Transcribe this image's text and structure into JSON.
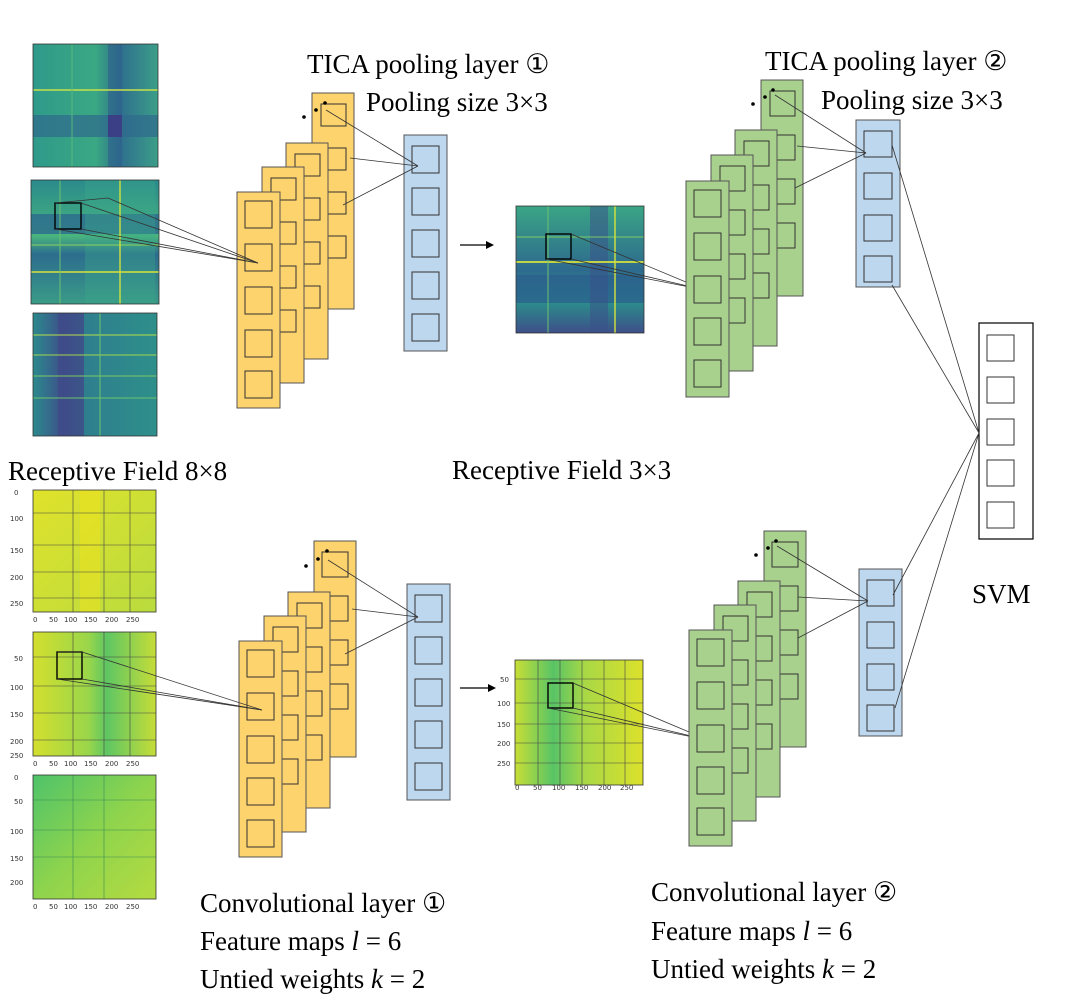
{
  "labels": {
    "tica1_title": "TICA pooling layer ①",
    "tica1_pool": "Pooling size 3×3",
    "tica2_title": "TICA pooling layer ②",
    "tica2_pool": "Pooling size 3×3",
    "rf1": "Receptive Field 8×8",
    "rf2": "Receptive Field 3×3",
    "svm": "SVM",
    "conv1_title": "Convolutional layer ①",
    "conv1_maps_prefix": "Feature maps",
    "conv1_maps_var": "l",
    "conv1_maps_val": "= 6",
    "conv1_weights_prefix": "Untied weights",
    "conv1_weights_var": "k",
    "conv1_weights_val": "= 2",
    "conv2_title": "Convolutional layer ②",
    "conv2_maps_prefix": "Feature maps",
    "conv2_maps_var": "l",
    "conv2_maps_val": "= 6",
    "conv2_weights_prefix": "Untied weights",
    "conv2_weights_var": "k",
    "conv2_weights_val": "= 2"
  },
  "axis_ticks": {
    "y": [
      "0",
      "50",
      "100",
      "150",
      "200",
      "250"
    ],
    "x": [
      "0",
      "50",
      "100",
      "150",
      "200",
      "250"
    ]
  },
  "colors": {
    "conv1": "#fdd36d",
    "conv2": "#a9d18e",
    "pool": "#bdd7ee",
    "svm": "#ffffff"
  }
}
